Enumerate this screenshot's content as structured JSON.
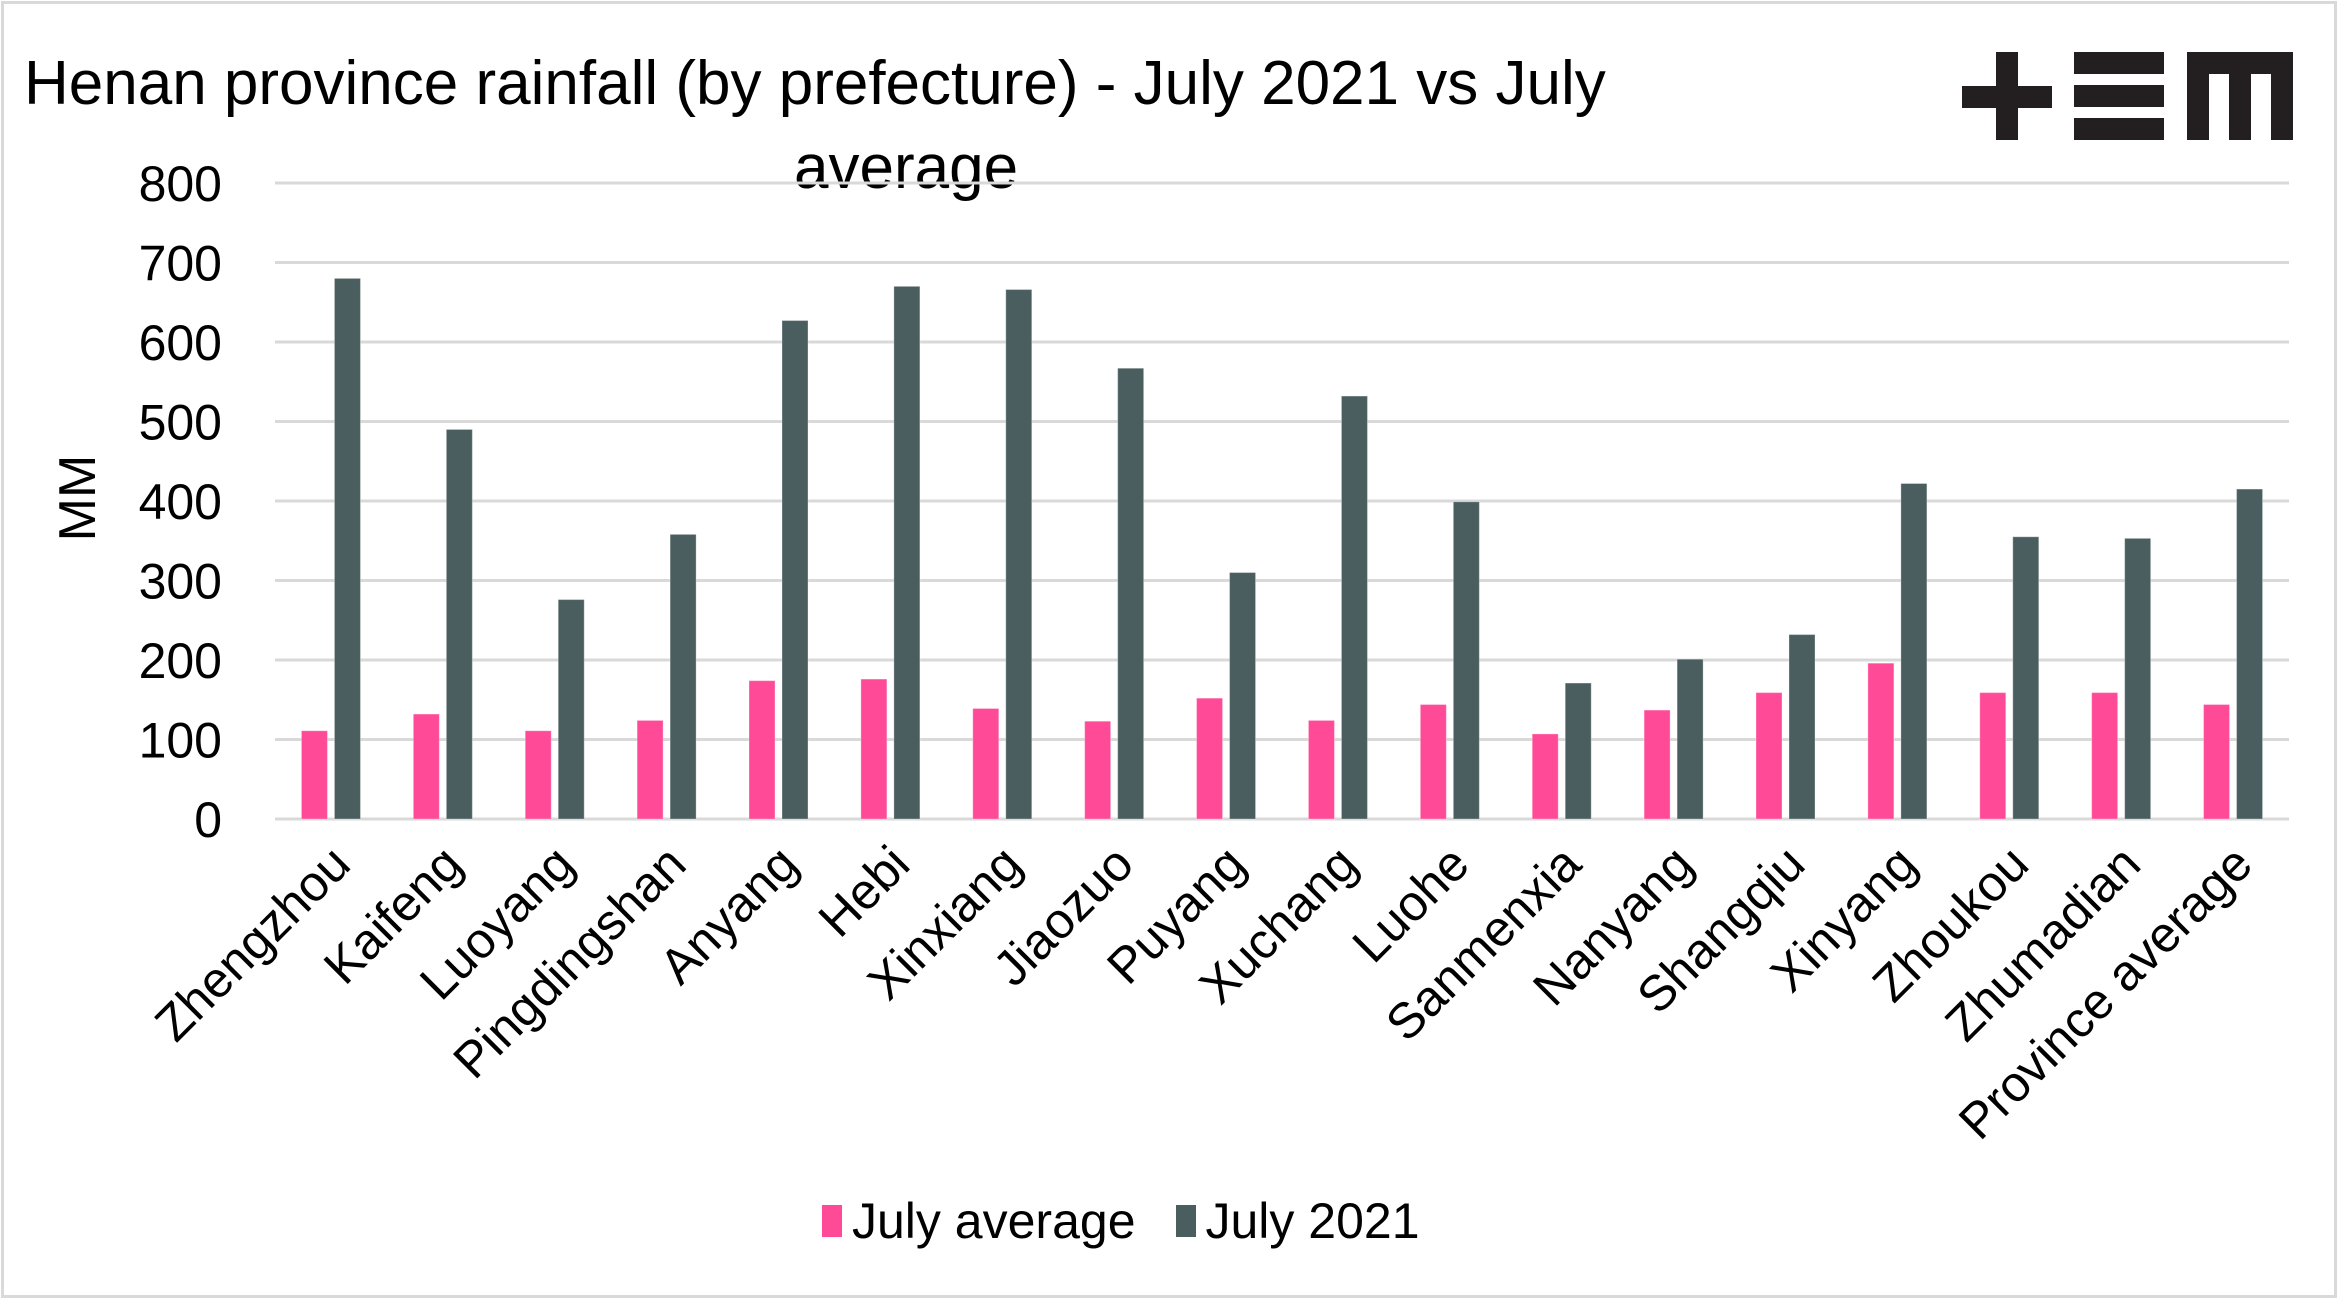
{
  "chart_data": {
    "type": "bar",
    "title": "Henan province rainfall (by prefecture) - July 2021 vs July average",
    "title_lines": [
      "Henan province rainfall (by prefecture) - July 2021 vs July",
      "average"
    ],
    "xlabel": "",
    "ylabel": "MM",
    "ylim": [
      0,
      800
    ],
    "yticks": [
      0,
      100,
      200,
      300,
      400,
      500,
      600,
      700,
      800
    ],
    "grid": true,
    "legend_position": "bottom",
    "categories": [
      "Zhengzhou",
      "Kaifeng",
      "Luoyang",
      "Pingdingshan",
      "Anyang",
      "Hebi",
      "Xinxiang",
      "Jiaozuo",
      "Puyang",
      "Xuchang",
      "Luohe",
      "Sanmenxia",
      "Nanyang",
      "Shangqiu",
      "Xinyang",
      "Zhoukou",
      "Zhumadian",
      "Province average"
    ],
    "series": [
      {
        "name": "July average",
        "color": "#FF4B97",
        "values": [
          111,
          132,
          111,
          124,
          174,
          176,
          139,
          123,
          152,
          124,
          144,
          107,
          137,
          159,
          196,
          159,
          159,
          144
        ]
      },
      {
        "name": "July 2021",
        "color": "#4B5E5F",
        "values": [
          680,
          490,
          276,
          358,
          627,
          670,
          666,
          567,
          310,
          532,
          399,
          171,
          201,
          232,
          422,
          355,
          353,
          415
        ]
      }
    ]
  },
  "logo": {
    "name": "EM logo",
    "icon": "plus-equals-m-logo"
  },
  "legend": {
    "items": [
      {
        "label": "July average",
        "color": "#FF4B97"
      },
      {
        "label": "July 2021",
        "color": "#4B5E5F"
      }
    ]
  },
  "colors": {
    "gridline": "#d9d9d9",
    "border": "#d9d9d9",
    "text": "#000000"
  }
}
